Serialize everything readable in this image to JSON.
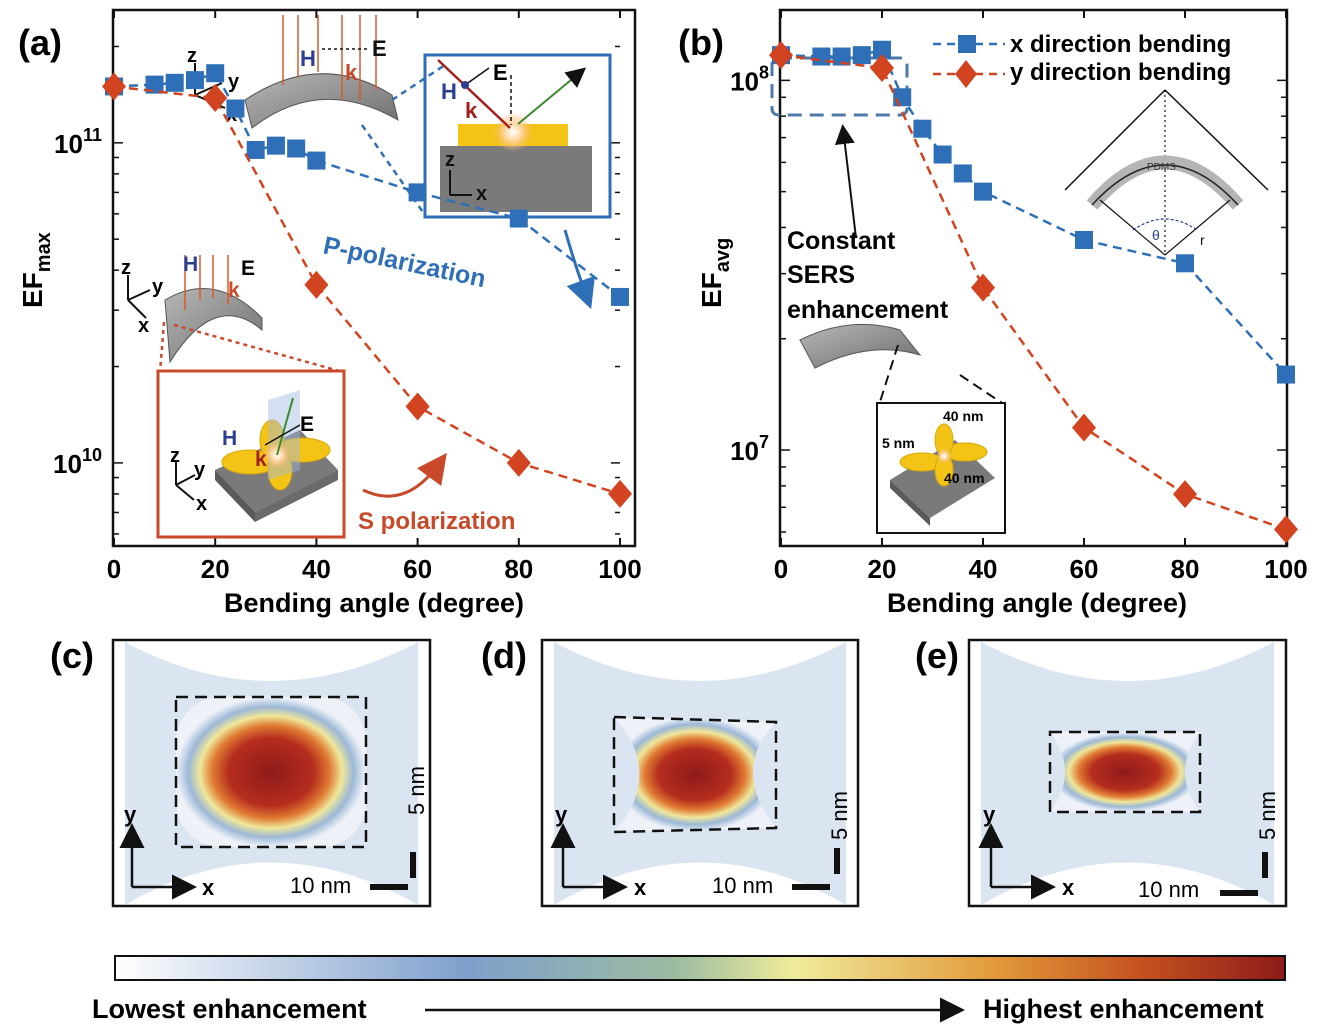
{
  "panels": {
    "a": "(a)",
    "b": "(b)",
    "c": "(c)",
    "d": "(d)",
    "e": "(e)"
  },
  "chart_data": [
    {
      "type": "line",
      "panel": "(a)",
      "xlabel": "Bending angle (degree)",
      "ylabel_main": "EF",
      "ylabel_sub": "max",
      "yscale": "log",
      "xlim": [
        0,
        100
      ],
      "ylim": [
        5500000000.0,
        260000000000.0
      ],
      "xticks": [
        0,
        20,
        40,
        60,
        80,
        100
      ],
      "xtick_labels": [
        "0",
        "20",
        "40",
        "60",
        "80",
        "100"
      ],
      "ytick_labels": [
        {
          "base": "10",
          "exp": "11",
          "value": 100000000000.0
        },
        {
          "base": "10",
          "exp": "10",
          "value": 10000000000.0
        }
      ],
      "series": [
        {
          "name": "P-polarization",
          "color": "#2e6fb7",
          "marker": "square",
          "x": [
            0,
            8,
            12,
            16,
            20,
            24,
            28,
            32,
            36,
            40,
            60,
            80,
            100
          ],
          "y": [
            150000000000.0,
            152000000000.0,
            154000000000.0,
            157000000000.0,
            165000000000.0,
            128000000000.0,
            95000000000.0,
            98000000000.0,
            96000000000.0,
            88000000000.0,
            70000000000.0,
            58000000000.0,
            33000000000.0
          ]
        },
        {
          "name": "S polarization",
          "color": "#d2431f",
          "marker": "diamond",
          "x": [
            0,
            20,
            40,
            60,
            80,
            100
          ],
          "y": [
            150000000000.0,
            138000000000.0,
            36000000000.0,
            15000000000.0,
            10000000000.0,
            8000000000.0
          ]
        }
      ],
      "annotations": {
        "p_label": "P-polarization",
        "s_label": "S polarization",
        "inset_top_labels": [
          "z",
          "y",
          "x",
          "H",
          "E",
          "k"
        ],
        "inset_left_labels": [
          "z",
          "y",
          "x",
          "H",
          "E",
          "k"
        ],
        "inset_p_labels": [
          "H",
          "E",
          "k",
          "z",
          "x"
        ],
        "inset_s_labels": [
          "z",
          "y",
          "x",
          "H",
          "E",
          "k"
        ]
      }
    },
    {
      "type": "line",
      "panel": "(b)",
      "xlabel": "Bending angle (degree)",
      "ylabel_main": "EF",
      "ylabel_sub": "avg",
      "yscale": "log",
      "xlim": [
        0,
        100
      ],
      "ylim": [
        5500000.0,
        155000000.0
      ],
      "xticks": [
        0,
        20,
        40,
        60,
        80,
        100
      ],
      "xtick_labels": [
        "0",
        "20",
        "40",
        "60",
        "80",
        "100"
      ],
      "ytick_labels": [
        {
          "base": "10",
          "exp": "8",
          "value": 100000000.0
        },
        {
          "base": "10",
          "exp": "7",
          "value": 10000000.0
        }
      ],
      "legend_position": "top-right",
      "series": [
        {
          "name": "x direction bending",
          "color": "#2e6fb7",
          "marker": "square",
          "x": [
            0,
            8,
            12,
            16,
            20,
            24,
            28,
            32,
            36,
            40,
            60,
            80,
            100
          ],
          "y": [
            117000000.0,
            116000000.0,
            116000000.0,
            117000000.0,
            121000000.0,
            90000000.0,
            74000000.0,
            63000000.0,
            56000000.0,
            50000000.0,
            37000000.0,
            32000000.0,
            16000000.0
          ]
        },
        {
          "name": "y direction bending",
          "color": "#d2431f",
          "marker": "diamond",
          "x": [
            0,
            20,
            40,
            60,
            80,
            100
          ],
          "y": [
            117000000.0,
            108000000.0,
            27500000.0,
            11500000.0,
            7600000.0,
            6100000.0
          ]
        }
      ],
      "annotations": {
        "constant_note": [
          "Constant",
          "SERS",
          "enhancement"
        ],
        "inset_dims": [
          "40 nm",
          "5 nm",
          "40 nm"
        ],
        "geometry_labels": [
          "PDMS",
          "θ",
          "r"
        ]
      }
    }
  ],
  "heatmaps": [
    {
      "panel": "(c)",
      "y_axis": "y",
      "x_axis": "x",
      "scale_x": "10 nm",
      "scale_y": "5 nm"
    },
    {
      "panel": "(d)",
      "y_axis": "y",
      "x_axis": "x",
      "scale_x": "10 nm",
      "scale_y": "5 nm"
    },
    {
      "panel": "(e)",
      "y_axis": "y",
      "x_axis": "x",
      "scale_x": "10 nm",
      "scale_y": "5 nm"
    }
  ],
  "colorbar": {
    "low_label": "Lowest enhancement",
    "high_label": "Highest enhancement",
    "colors": [
      "#ffffff",
      "#c5d3e8",
      "#7f9fcc",
      "#8fb3a4",
      "#e9e89a",
      "#e39b3b",
      "#c3501f",
      "#8e1a1a"
    ]
  }
}
